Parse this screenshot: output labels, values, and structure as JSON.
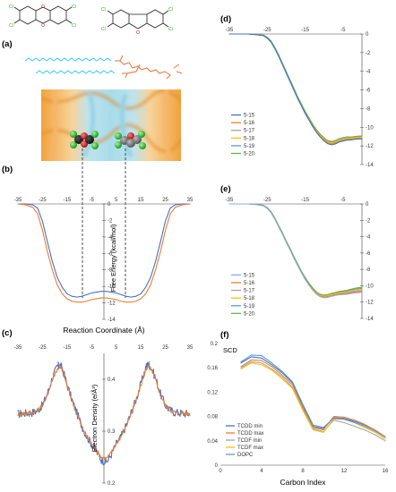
{
  "panels": {
    "a": "(a)",
    "b": "(b)",
    "c": "(c)",
    "d": "(d)",
    "e": "(e)",
    "f": "(f)"
  },
  "colors": {
    "blue": "#4472c4",
    "orange": "#ed7d31",
    "gray": "#a5a5a5",
    "yellow": "#ffc000",
    "lightblue": "#5b9bd5",
    "green": "#70ad47",
    "chlorine": "#3bbf3b",
    "lipid_tail": "#35d0e8",
    "lipid_head": "#e8733a"
  },
  "chart_data": [
    {
      "id": "b",
      "type": "line",
      "xlabel": "Reaction Coordinate (Å)",
      "ylabel": "Free Energy (kcal/mol)",
      "xlim": [
        -35,
        35
      ],
      "ylim": [
        -14,
        0
      ],
      "xticks": [
        -35,
        -25,
        -15,
        -5,
        5,
        15,
        25,
        35
      ],
      "yticks": [
        0,
        -2,
        -4,
        -6,
        -8,
        -10,
        -12,
        -14
      ],
      "series": [
        {
          "color": "#4472c4",
          "x": [
            -35,
            -32,
            -29,
            -27,
            -25,
            -23,
            -21,
            -19,
            -17,
            -15,
            -13,
            -11,
            -9,
            -7,
            -5,
            -3,
            -1,
            1,
            3,
            5,
            7,
            9,
            11,
            13,
            15,
            17,
            19,
            21,
            23,
            25,
            27,
            29,
            32,
            35
          ],
          "y": [
            0,
            0,
            -0.1,
            -0.5,
            -2.1,
            -4.6,
            -7.0,
            -8.9,
            -10.1,
            -10.9,
            -11.2,
            -11.3,
            -11.2,
            -11.0,
            -10.8,
            -10.7,
            -10.6,
            -10.6,
            -10.7,
            -10.8,
            -11.0,
            -11.2,
            -11.3,
            -11.2,
            -10.9,
            -10.1,
            -8.9,
            -7.0,
            -4.6,
            -2.1,
            -0.5,
            -0.1,
            0,
            0
          ]
        },
        {
          "color": "#ed7d31",
          "x": [
            -35,
            -32,
            -29,
            -27,
            -25,
            -23,
            -21,
            -19,
            -17,
            -15,
            -13,
            -11,
            -9,
            -7,
            -5,
            -3,
            -1,
            1,
            3,
            5,
            7,
            9,
            11,
            13,
            15,
            17,
            19,
            21,
            23,
            25,
            27,
            29,
            32,
            35
          ],
          "y": [
            0,
            -0.1,
            -0.4,
            -1.2,
            -3.2,
            -5.8,
            -8.0,
            -9.8,
            -10.9,
            -11.5,
            -11.8,
            -11.9,
            -11.9,
            -11.8,
            -11.6,
            -11.5,
            -11.4,
            -11.4,
            -11.5,
            -11.6,
            -11.8,
            -11.9,
            -11.9,
            -11.8,
            -11.5,
            -10.9,
            -9.8,
            -8.0,
            -5.8,
            -3.2,
            -1.2,
            -0.4,
            -0.1,
            0
          ]
        }
      ]
    },
    {
      "id": "c",
      "type": "line",
      "xlabel": "",
      "ylabel": "Electron Density (e/Å³)",
      "xlim": [
        -35,
        35
      ],
      "ylim": [
        0.2,
        0.45
      ],
      "xticks": [
        -35,
        -25,
        -15,
        -5,
        5,
        15,
        25,
        35
      ],
      "yticks": [
        0.2,
        0.3,
        0.4
      ],
      "series": [
        {
          "color": "#4472c4",
          "x": [
            -35,
            -33,
            -31,
            -29,
            -27,
            -25,
            -23,
            -21,
            -19,
            -18,
            -17,
            -15,
            -13,
            -11,
            -9,
            -7,
            -5,
            -3,
            -1,
            1,
            3,
            5,
            7,
            9,
            11,
            13,
            15,
            17,
            18,
            19,
            21,
            23,
            25,
            27,
            29,
            31,
            33,
            35
          ],
          "y": [
            0.333,
            0.334,
            0.335,
            0.336,
            0.34,
            0.35,
            0.372,
            0.403,
            0.424,
            0.428,
            0.422,
            0.39,
            0.36,
            0.335,
            0.31,
            0.29,
            0.275,
            0.26,
            0.245,
            0.24,
            0.255,
            0.275,
            0.29,
            0.31,
            0.335,
            0.36,
            0.39,
            0.422,
            0.43,
            0.424,
            0.403,
            0.372,
            0.35,
            0.34,
            0.336,
            0.335,
            0.334,
            0.333
          ],
          "noise": 0.008
        },
        {
          "color": "#ed7d31",
          "x": [
            -35,
            -33,
            -31,
            -29,
            -27,
            -25,
            -23,
            -21,
            -19,
            -18,
            -17,
            -15,
            -13,
            -11,
            -9,
            -7,
            -5,
            -3,
            -1,
            1,
            3,
            5,
            7,
            9,
            11,
            13,
            15,
            17,
            18,
            19,
            21,
            23,
            25,
            27,
            29,
            31,
            33,
            35
          ],
          "y": [
            0.333,
            0.334,
            0.335,
            0.336,
            0.34,
            0.35,
            0.37,
            0.4,
            0.42,
            0.424,
            0.418,
            0.388,
            0.358,
            0.333,
            0.309,
            0.29,
            0.276,
            0.262,
            0.25,
            0.247,
            0.258,
            0.276,
            0.29,
            0.309,
            0.333,
            0.358,
            0.388,
            0.418,
            0.425,
            0.42,
            0.4,
            0.37,
            0.35,
            0.34,
            0.336,
            0.335,
            0.334,
            0.333
          ],
          "noise": 0.004
        }
      ]
    },
    {
      "id": "d",
      "type": "line",
      "xlim": [
        -35,
        0
      ],
      "ylim": [
        -14,
        0
      ],
      "xticks": [
        -35,
        -25,
        -15,
        -5
      ],
      "yticks": [
        0,
        -2,
        -4,
        -6,
        -8,
        -10,
        -12,
        -14
      ],
      "legend": [
        "5-15",
        "5-16",
        "5-17",
        "5-18",
        "5-19",
        "5-20"
      ],
      "legend_position": "left",
      "series_colors": [
        "#4472c4",
        "#ed7d31",
        "#a5a5a5",
        "#ffc000",
        "#5b9bd5",
        "#70ad47"
      ],
      "x": [
        -35,
        -32,
        -30,
        -28,
        -26,
        -25,
        -24,
        -23,
        -22,
        -21,
        -20,
        -19,
        -18,
        -17,
        -16,
        -15,
        -14,
        -13,
        -12,
        -11,
        -10,
        -9,
        -8,
        -7,
        -6,
        -5,
        -4,
        -3,
        -2,
        -1,
        0
      ],
      "y": [
        0,
        0,
        0,
        -0.05,
        -0.15,
        -0.4,
        -0.8,
        -1.5,
        -2.3,
        -3.2,
        -4.1,
        -5.0,
        -5.9,
        -6.8,
        -7.6,
        -8.4,
        -9.1,
        -9.8,
        -10.4,
        -10.9,
        -11.3,
        -11.6,
        -11.7,
        -11.6,
        -11.4,
        -11.3,
        -11.2,
        -11.2,
        -11.15,
        -11.1,
        -11.1
      ],
      "spread": [
        0,
        0,
        0,
        0.02,
        0.03,
        0.05,
        0.06,
        0.07,
        0.08,
        0.08,
        0.09,
        0.09,
        0.1,
        0.1,
        0.1,
        0.12,
        0.12,
        0.13,
        0.14,
        0.15,
        0.16,
        0.17,
        0.18,
        0.18,
        0.18,
        0.18,
        0.17,
        0.16,
        0.15,
        0.15,
        0.15
      ]
    },
    {
      "id": "e",
      "type": "line",
      "xlim": [
        -35,
        0
      ],
      "ylim": [
        -14,
        0
      ],
      "xticks": [
        -35,
        -25,
        -15,
        -5
      ],
      "yticks": [
        0,
        -2,
        -4,
        -6,
        -8,
        -10,
        -12,
        -14
      ],
      "legend": [
        "5-15",
        "5-16",
        "5-17",
        "5-18",
        "5-19",
        "5-20"
      ],
      "legend_position": "left",
      "series_colors": [
        "#8faadc",
        "#ed7d31",
        "#a5a5a5",
        "#ffc000",
        "#5b9bd5",
        "#70ad47"
      ],
      "x": [
        -35,
        -32,
        -30,
        -28,
        -26,
        -25,
        -24,
        -23,
        -22,
        -21,
        -20,
        -19,
        -18,
        -17,
        -16,
        -15,
        -14,
        -13,
        -12,
        -11,
        -10,
        -9,
        -8,
        -7,
        -6,
        -5,
        -4,
        -3,
        -2,
        -1,
        0
      ],
      "y": [
        0,
        0,
        0,
        -0.05,
        -0.2,
        -0.5,
        -1.0,
        -1.8,
        -2.7,
        -3.6,
        -4.6,
        -5.5,
        -6.5,
        -7.4,
        -8.3,
        -9.1,
        -9.8,
        -10.4,
        -10.9,
        -11.2,
        -11.3,
        -11.25,
        -11.1,
        -11.0,
        -10.9,
        -10.85,
        -10.8,
        -10.7,
        -10.6,
        -10.55,
        -10.5
      ],
      "spread": [
        0,
        0,
        0,
        0.02,
        0.03,
        0.05,
        0.06,
        0.07,
        0.08,
        0.08,
        0.09,
        0.09,
        0.1,
        0.1,
        0.1,
        0.12,
        0.12,
        0.13,
        0.14,
        0.15,
        0.16,
        0.17,
        0.18,
        0.18,
        0.2,
        0.22,
        0.24,
        0.26,
        0.28,
        0.3,
        0.3
      ]
    },
    {
      "id": "f",
      "type": "line",
      "xlabel": "Carbon Index",
      "ylabel": "SCD",
      "xlim": [
        0,
        16
      ],
      "ylim": [
        0,
        0.2
      ],
      "xticks": [
        0,
        4,
        8,
        12,
        16
      ],
      "yticks": [
        0,
        0.04,
        0.08,
        0.12,
        0.16,
        0.2
      ],
      "legend": [
        "TCDD min",
        "TCDD max",
        "TCDF min",
        "TCDF max",
        "DOPC"
      ],
      "legend_position": "lower-left",
      "x": [
        2,
        3,
        4,
        5,
        6,
        7,
        8,
        9,
        10,
        11,
        12,
        13,
        14,
        15,
        16
      ],
      "series": [
        {
          "name": "TCDD min",
          "color": "#4472c4",
          "values": [
            0.168,
            0.178,
            0.176,
            0.165,
            0.152,
            0.135,
            0.098,
            0.064,
            0.06,
            0.078,
            0.077,
            0.072,
            0.066,
            0.058,
            0.046
          ]
        },
        {
          "name": "TCDD max",
          "color": "#ed7d31",
          "values": [
            0.162,
            0.173,
            0.172,
            0.162,
            0.148,
            0.132,
            0.095,
            0.062,
            0.058,
            0.08,
            0.079,
            0.074,
            0.067,
            0.058,
            0.047
          ]
        },
        {
          "name": "TCDF min",
          "color": "#a5a5a5",
          "values": [
            0.16,
            0.17,
            0.168,
            0.158,
            0.145,
            0.128,
            0.092,
            0.06,
            0.055,
            0.074,
            0.07,
            0.064,
            0.058,
            0.05,
            0.04
          ]
        },
        {
          "name": "TCDF max",
          "color": "#ffc000",
          "values": [
            0.158,
            0.168,
            0.165,
            0.156,
            0.142,
            0.126,
            0.09,
            0.058,
            0.054,
            0.076,
            0.075,
            0.07,
            0.062,
            0.054,
            0.043
          ]
        },
        {
          "name": "DOPC",
          "color": "#5b9bd5",
          "values": [
            0.17,
            0.181,
            0.18,
            0.168,
            0.154,
            0.137,
            0.1,
            0.066,
            0.062,
            0.077,
            0.076,
            0.07,
            0.064,
            0.056,
            0.046
          ]
        }
      ]
    }
  ]
}
